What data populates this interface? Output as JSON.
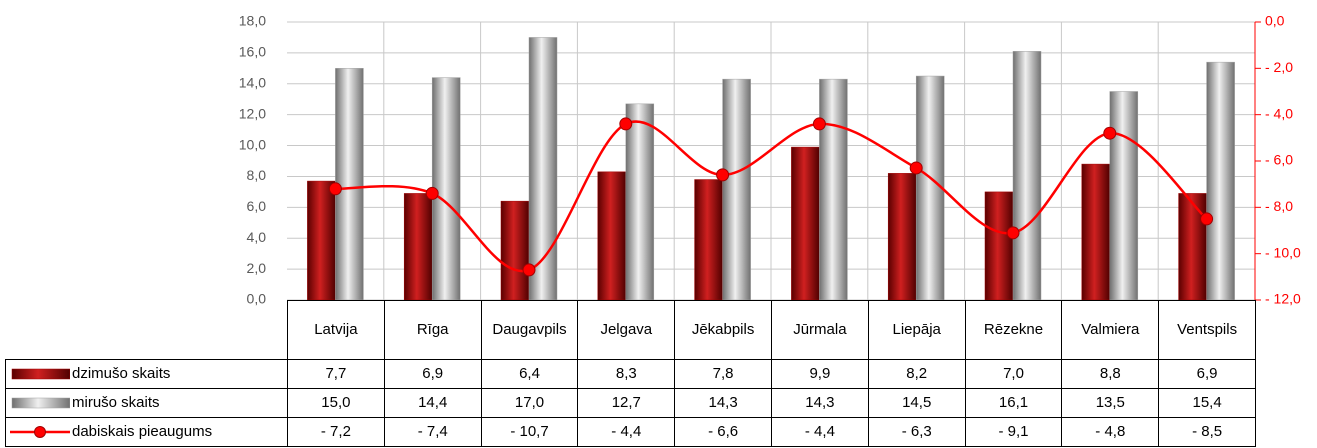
{
  "chart_data": {
    "type": "bar",
    "categories": [
      "Latvija",
      "Rīga",
      "Daugavpils",
      "Jelgava",
      "Jēkabpils",
      "Jūrmala",
      "Liepāja",
      "Rēzekne",
      "Valmiera",
      "Ventspils"
    ],
    "series": [
      {
        "name": "dzimušo skaits",
        "color": "#a00000",
        "values": [
          7.7,
          6.9,
          6.4,
          8.3,
          7.8,
          9.9,
          8.2,
          7.0,
          8.8,
          6.9
        ],
        "value_labels": [
          "7,7",
          "6,9",
          "6,4",
          "8,3",
          "7,8",
          "9,9",
          "8,2",
          "7,0",
          "8,8",
          "6,9"
        ]
      },
      {
        "name": "mirušo skaits",
        "color": "#a0a0a0",
        "values": [
          15.0,
          14.4,
          17.0,
          12.7,
          14.3,
          14.3,
          14.5,
          16.1,
          13.5,
          15.4
        ],
        "value_labels": [
          "15,0",
          "14,4",
          "17,0",
          "12,7",
          "14,3",
          "14,3",
          "14,5",
          "16,1",
          "13,5",
          "15,4"
        ]
      },
      {
        "name": "dabiskais pieaugums",
        "color": "#ff0000",
        "type": "line",
        "axis": "y2",
        "values": [
          -7.2,
          -7.4,
          -10.7,
          -4.4,
          -6.6,
          -4.4,
          -6.3,
          -9.1,
          -4.8,
          -8.5
        ],
        "value_labels": [
          "- 7,2",
          "- 7,4",
          "- 10,7",
          "- 4,4",
          "- 6,6",
          "- 4,4",
          "- 6,3",
          "- 9,1",
          "- 4,8",
          "- 8,5"
        ]
      }
    ],
    "ylim": [
      0,
      18
    ],
    "yticks": [
      {
        "value": 0,
        "label": "0,0"
      },
      {
        "value": 2,
        "label": "2,0"
      },
      {
        "value": 4,
        "label": "4,0"
      },
      {
        "value": 6,
        "label": "6,0"
      },
      {
        "value": 8,
        "label": "8,0"
      },
      {
        "value": 10,
        "label": "10,0"
      },
      {
        "value": 12,
        "label": "12,0"
      },
      {
        "value": 14,
        "label": "14,0"
      },
      {
        "value": 16,
        "label": "16,0"
      },
      {
        "value": 18,
        "label": "18,0"
      }
    ],
    "y2lim": [
      -12,
      0
    ],
    "y2ticks": [
      {
        "value": 0,
        "label": "0,0"
      },
      {
        "value": -2,
        "label": "- 2,0"
      },
      {
        "value": -4,
        "label": "- 4,0"
      },
      {
        "value": -6,
        "label": "- 6,0"
      },
      {
        "value": -8,
        "label": "- 8,0"
      },
      {
        "value": -10,
        "label": "- 10,0"
      },
      {
        "value": -12,
        "label": "- 12,0"
      }
    ],
    "grid": true
  }
}
